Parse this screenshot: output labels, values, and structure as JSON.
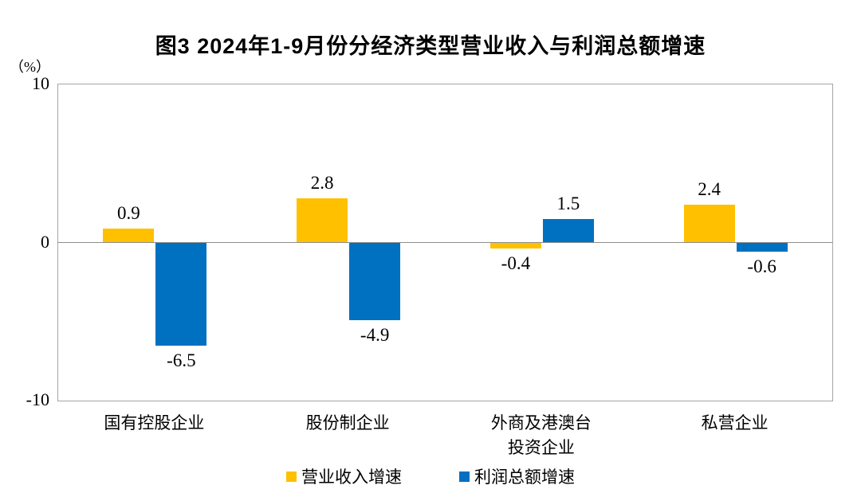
{
  "chart_data": {
    "type": "bar",
    "title": "图3 2024年1-9月份分经济类型营业收入与利润总额增速",
    "unit_label": "（%）",
    "categories": [
      "国有控股企业",
      "股份制企业",
      "外商及港澳台\n投资企业",
      "私营企业"
    ],
    "series": [
      {
        "name": "营业收入增速",
        "color": "#FFC000",
        "values": [
          0.9,
          2.8,
          -0.4,
          2.4
        ],
        "labels": [
          "0.9",
          "2.8",
          "-0.4",
          "2.4"
        ]
      },
      {
        "name": "利润总额增速",
        "color": "#0070C0",
        "values": [
          -6.5,
          -4.9,
          1.5,
          -0.6
        ],
        "labels": [
          "-6.5",
          "-4.9",
          "1.5",
          "-0.6"
        ]
      }
    ],
    "y_axis": {
      "min": -10,
      "max": 10,
      "ticks": [
        {
          "value": 10,
          "label": "10"
        },
        {
          "value": 0,
          "label": "0"
        },
        {
          "value": -10,
          "label": "-10"
        }
      ]
    },
    "grid": false,
    "legend_position": "bottom",
    "colors": {
      "plot_border": "#a6a6a6",
      "zero_line": "#8c8c8c",
      "text": "#000000",
      "background": "#ffffff"
    }
  }
}
